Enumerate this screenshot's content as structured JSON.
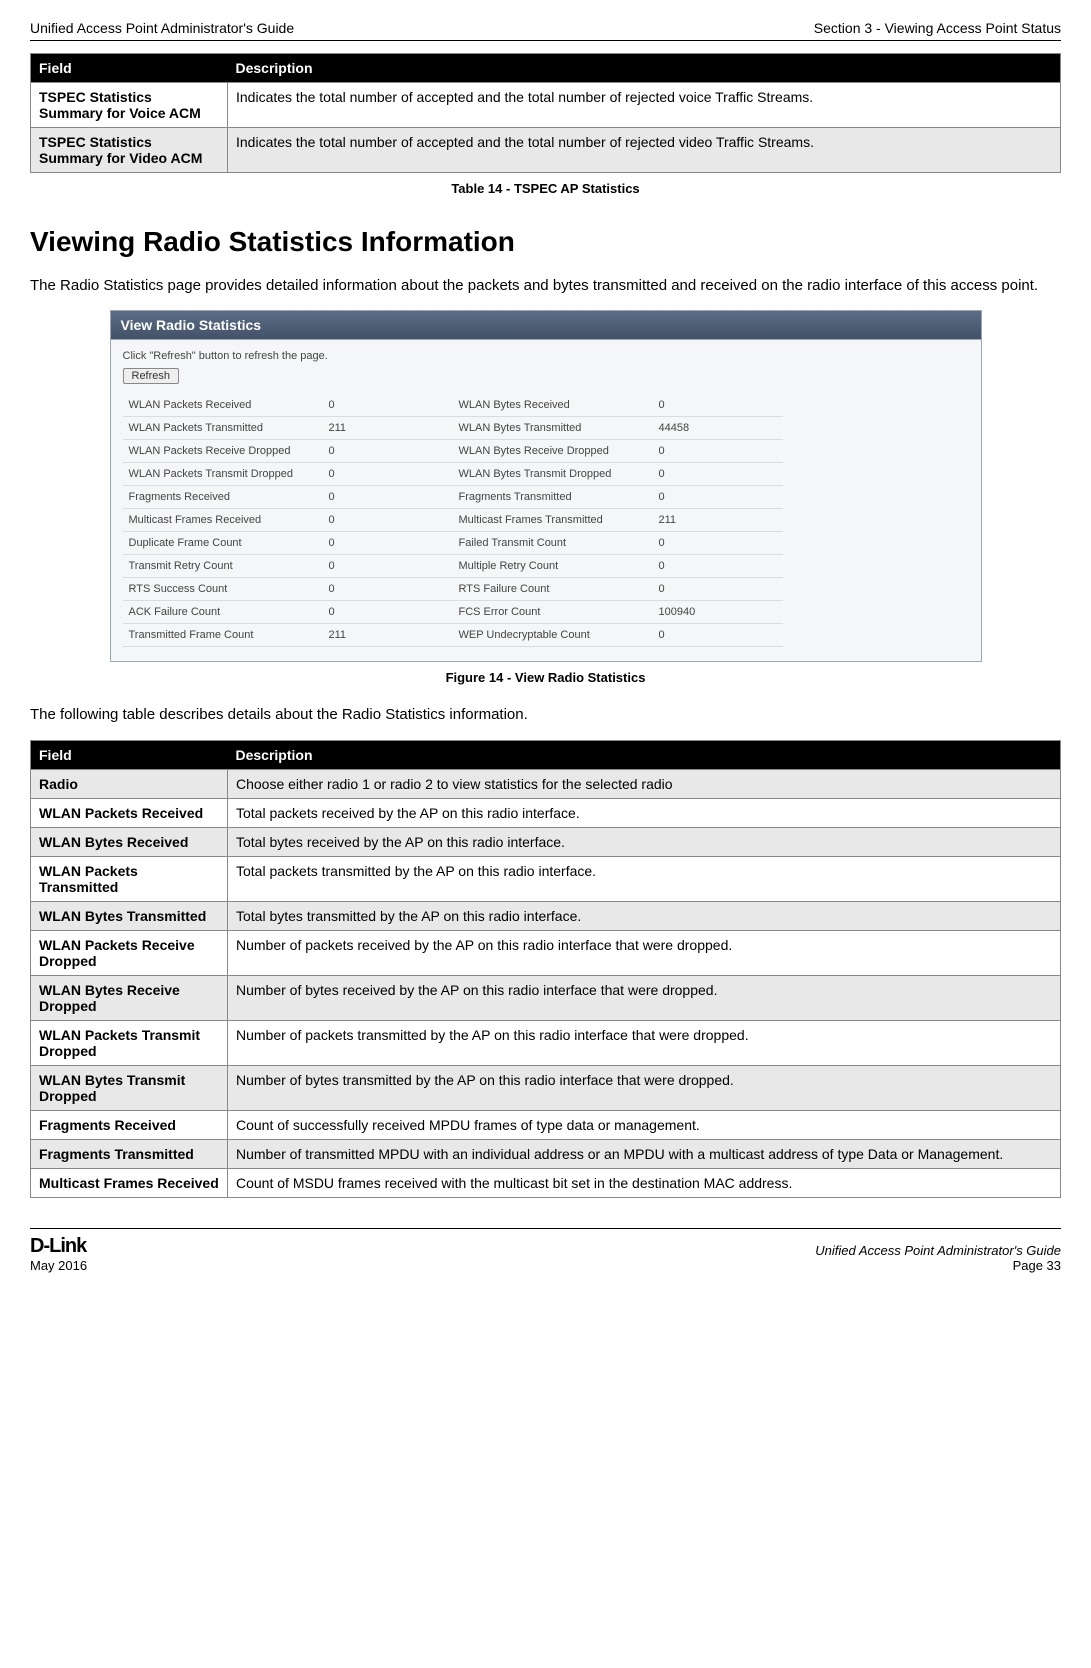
{
  "header": {
    "left": "Unified Access Point Administrator's Guide",
    "right": "Section 3 - Viewing Access Point Status"
  },
  "table1": {
    "headers": [
      "Field",
      "Description"
    ],
    "rows": [
      {
        "field": "TSPEC Statistics Summary for Voice ACM",
        "desc": "Indicates the total number of accepted and the total number of rejected voice Traffic Streams."
      },
      {
        "field": "TSPEC Statistics Summary for Video ACM",
        "desc": "Indicates the total number of accepted and the total number of rejected video Traffic Streams."
      }
    ],
    "caption": "Table 14 - TSPEC AP Statistics"
  },
  "section_title": "Viewing Radio Statistics Information",
  "intro_text": "The Radio Statistics page provides detailed information about the packets and bytes transmitted and received on the radio interface of this access point.",
  "screenshot": {
    "title": "View Radio Statistics",
    "hint": "Click \"Refresh\" button to refresh the page.",
    "refresh_label": "Refresh",
    "rows": [
      {
        "l_label": "WLAN Packets Received",
        "l_val": "0",
        "r_label": "WLAN Bytes Received",
        "r_val": "0"
      },
      {
        "l_label": "WLAN Packets Transmitted",
        "l_val": "211",
        "r_label": "WLAN Bytes Transmitted",
        "r_val": "44458"
      },
      {
        "l_label": "WLAN Packets Receive Dropped",
        "l_val": "0",
        "r_label": "WLAN Bytes Receive Dropped",
        "r_val": "0"
      },
      {
        "l_label": "WLAN Packets Transmit Dropped",
        "l_val": "0",
        "r_label": "WLAN Bytes Transmit Dropped",
        "r_val": "0"
      },
      {
        "l_label": "Fragments Received",
        "l_val": "0",
        "r_label": "Fragments Transmitted",
        "r_val": "0"
      },
      {
        "l_label": "Multicast Frames Received",
        "l_val": "0",
        "r_label": "Multicast Frames Transmitted",
        "r_val": "211"
      },
      {
        "l_label": "Duplicate Frame Count",
        "l_val": "0",
        "r_label": "Failed Transmit Count",
        "r_val": "0"
      },
      {
        "l_label": "Transmit Retry Count",
        "l_val": "0",
        "r_label": "Multiple Retry Count",
        "r_val": "0"
      },
      {
        "l_label": "RTS Success Count",
        "l_val": "0",
        "r_label": "RTS Failure Count",
        "r_val": "0"
      },
      {
        "l_label": "ACK Failure Count",
        "l_val": "0",
        "r_label": "FCS Error Count",
        "r_val": "100940"
      },
      {
        "l_label": "Transmitted Frame Count",
        "l_val": "211",
        "r_label": "WEP Undecryptable Count",
        "r_val": "0"
      }
    ],
    "caption": "Figure 14 - View Radio Statistics"
  },
  "mid_text": "The following table describes details about the Radio Statistics information.",
  "table2": {
    "headers": [
      "Field",
      "Description"
    ],
    "rows": [
      {
        "field": "Radio",
        "desc": "Choose either radio 1 or radio 2 to view statistics for the selected radio"
      },
      {
        "field": "WLAN Packets Received",
        "desc": "Total packets received by the AP on this radio interface."
      },
      {
        "field": "WLAN Bytes Received",
        "desc": "Total bytes received by the AP on this radio interface."
      },
      {
        "field": "WLAN Packets Transmitted",
        "desc": "Total packets transmitted by the AP on this radio interface."
      },
      {
        "field": "WLAN Bytes Transmitted",
        "desc": "Total bytes transmitted by the AP on this radio interface."
      },
      {
        "field": "WLAN Packets Receive Dropped",
        "desc": "Number of packets received by the AP on this radio interface that were dropped."
      },
      {
        "field": "WLAN Bytes Receive Dropped",
        "desc": "Number of bytes received by the AP on this radio interface that were dropped."
      },
      {
        "field": "WLAN Packets Transmit Dropped",
        "desc": "Number of packets transmitted by the AP on this radio interface that were dropped."
      },
      {
        "field": "WLAN Bytes Transmit Dropped",
        "desc": "Number of bytes transmitted by the AP on this radio interface that were dropped."
      },
      {
        "field": "Fragments Received",
        "desc": "Count of successfully received MPDU frames of type data or management."
      },
      {
        "field": "Fragments Transmitted",
        "desc": "Number of transmitted MPDU with an individual address or an MPDU with a multicast address of type Data or Management."
      },
      {
        "field": "Multicast Frames Received",
        "desc": "Count of MSDU frames received with the multicast bit set in the destination MAC address."
      }
    ]
  },
  "footer": {
    "brand": "D-Link",
    "date": "May 2016",
    "right_title": "Unified Access Point Administrator's Guide",
    "page": "Page 33"
  }
}
